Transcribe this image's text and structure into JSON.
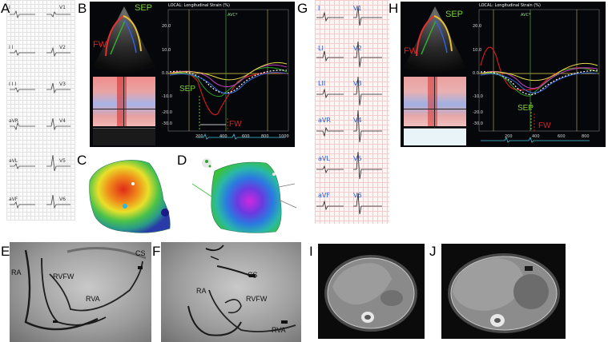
{
  "panel_labels": [
    "A",
    "B",
    "C",
    "D",
    "E",
    "F",
    "G",
    "H",
    "I",
    "J"
  ],
  "ecg_a": {
    "left_leads": [
      "I",
      "I I",
      "I I I",
      "aVR",
      "aVL",
      "aVF"
    ],
    "right_leads": [
      "V1",
      "V2",
      "V3",
      "V4",
      "V5",
      "V6"
    ]
  },
  "ecg_g": {
    "left_leads": [
      "I",
      "LI",
      "LII",
      "aVR",
      "aVL",
      "aVF"
    ],
    "right_leads": [
      "V1",
      "V2",
      "V3",
      "V4",
      "V5",
      "V6"
    ]
  },
  "echo_b": {
    "header": "LOCAL: Longitudinal Strain (%)",
    "wall_labels": {
      "septal": "SEP",
      "free_wall": "FW"
    },
    "marker": "AVC*",
    "y_ticks": [
      "20.0",
      "10.0",
      "0.0",
      "-10.0",
      "-20.0",
      "-30.0"
    ],
    "x_ticks": [
      "200",
      "400",
      "600",
      "800",
      "1000"
    ]
  },
  "echo_h": {
    "header": "LOCAL: Longitudinal Strain (%)",
    "wall_labels": {
      "septal": "SEP",
      "free_wall": "FW"
    },
    "marker": "AVC*",
    "y_ticks": [
      "20.0",
      "10.0",
      "0.0",
      "-10.0",
      "-20.0",
      "-30.0"
    ],
    "x_ticks": [
      "200",
      "400",
      "600",
      "800"
    ]
  },
  "fluoro_e": {
    "labels": {
      "ra": "RA",
      "rvfw": "RVFW",
      "rva": "RVA",
      "cs": "CS"
    }
  },
  "fluoro_f": {
    "labels": {
      "ra": "RA",
      "rvfw": "RVFW",
      "rva": "RVA",
      "cs": "CS"
    }
  },
  "colors": {
    "strain_red": "#d01c1c",
    "strain_green": "#2aa52a",
    "strain_yellow": "#e6d84a",
    "strain_magenta": "#c040c0",
    "strain_blue": "#3a6ad8",
    "strain_white": "#ffffff",
    "label_green": "#7ecf3a",
    "label_red": "#e02020"
  }
}
